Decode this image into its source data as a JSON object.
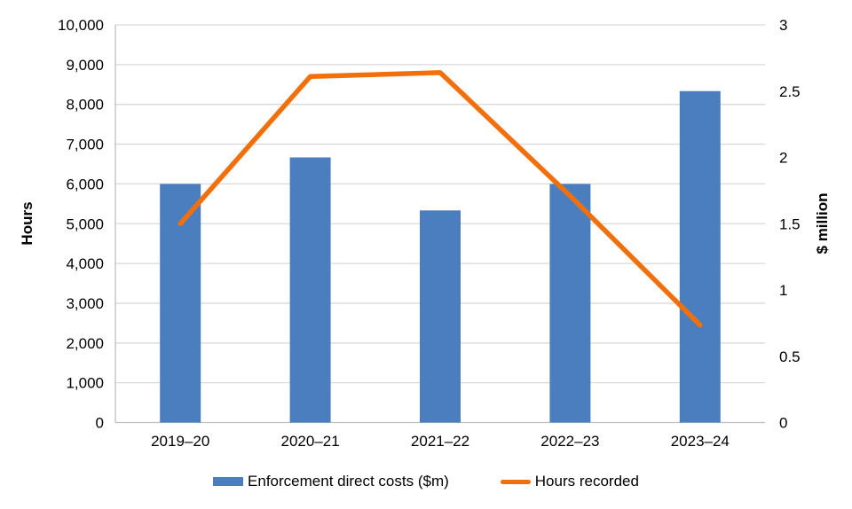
{
  "colors": {
    "bar": "#4A7EBE",
    "line": "#F2700C",
    "gridline": "#D9D9D9",
    "axis_line": "#BFBFBF",
    "text": "#000000"
  },
  "chart_data": {
    "type": "combo",
    "title": "",
    "categories": [
      "2019–20",
      "2020–21",
      "2021–22",
      "2022–23",
      "2023–24"
    ],
    "series": [
      {
        "name": "Enforcement direct costs ($m)",
        "type": "bar",
        "axis": "right",
        "values": [
          1.8,
          2.0,
          1.6,
          1.8,
          2.5
        ]
      },
      {
        "name": "Hours recorded",
        "type": "line",
        "axis": "left",
        "values": [
          5000,
          8700,
          8800,
          5700,
          2450
        ]
      }
    ],
    "left_axis": {
      "label": "Hours",
      "min": 0,
      "max": 10000,
      "step": 1000,
      "ticks": [
        "0",
        "1,000",
        "2,000",
        "3,000",
        "4,000",
        "5,000",
        "6,000",
        "7,000",
        "8,000",
        "9,000",
        "10,000"
      ]
    },
    "right_axis": {
      "label": "$ million",
      "min": 0,
      "max": 3,
      "step": 0.5,
      "ticks": [
        "0",
        "0.5",
        "1",
        "1.5",
        "2",
        "2.5",
        "3"
      ]
    },
    "grid": true,
    "legend_position": "bottom"
  }
}
